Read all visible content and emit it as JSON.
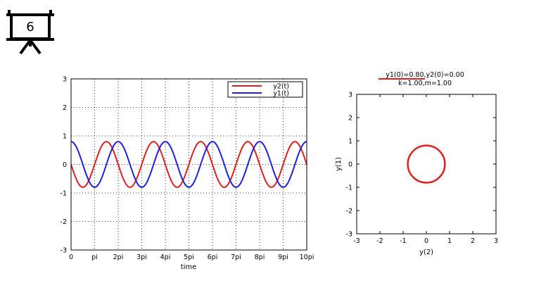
{
  "slide": {
    "number": "6",
    "icon": "projector-screen-icon"
  },
  "chart_data": [
    {
      "type": "line",
      "xlabel": "time",
      "ylabel": "",
      "xlim": [
        0,
        31.4159
      ],
      "ylim": [
        -3,
        3
      ],
      "grid": true,
      "legend_position": "top-right",
      "x_ticks": [
        {
          "value": 0,
          "label": "0"
        },
        {
          "value": 3.14159,
          "label": "pi"
        },
        {
          "value": 6.28319,
          "label": "2pi"
        },
        {
          "value": 9.42478,
          "label": "3pi"
        },
        {
          "value": 12.56637,
          "label": "4pi"
        },
        {
          "value": 15.70796,
          "label": "5pi"
        },
        {
          "value": 18.84956,
          "label": "6pi"
        },
        {
          "value": 21.99115,
          "label": "7pi"
        },
        {
          "value": 25.13274,
          "label": "8pi"
        },
        {
          "value": 28.27433,
          "label": "9pi"
        },
        {
          "value": 31.41593,
          "label": "10pi"
        }
      ],
      "y_ticks": [
        {
          "value": 3,
          "label": "3"
        },
        {
          "value": 2,
          "label": "2"
        },
        {
          "value": 1,
          "label": "1"
        },
        {
          "value": 0,
          "label": "0"
        },
        {
          "value": -1,
          "label": "-1"
        },
        {
          "value": -2,
          "label": "-2"
        },
        {
          "value": -3,
          "label": "-3"
        }
      ],
      "series": [
        {
          "name": "y2(t)",
          "color": "#e02020",
          "formula": "y2(t) = -0.8 * sin(t)",
          "amplitude": 0.8,
          "phase": "negative sine"
        },
        {
          "name": "y1(t)",
          "color": "#2020e0",
          "formula": "y1(t) = 0.8 * cos(t)",
          "amplitude": 0.8,
          "phase": "cosine"
        }
      ]
    },
    {
      "type": "line",
      "title_lines": [
        "y1(0)=0.80,y2(0)=0.00",
        "k=1.00,m=1.00"
      ],
      "xlabel": "y(2)",
      "ylabel": "y(1)",
      "xlim": [
        -3,
        3
      ],
      "ylim": [
        -3,
        3
      ],
      "grid": false,
      "x_ticks": [
        {
          "value": -3,
          "label": "-3"
        },
        {
          "value": -2,
          "label": "-2"
        },
        {
          "value": -1,
          "label": "-1"
        },
        {
          "value": 0,
          "label": "0"
        },
        {
          "value": 1,
          "label": "1"
        },
        {
          "value": 2,
          "label": "2"
        },
        {
          "value": 3,
          "label": "3"
        }
      ],
      "y_ticks": [
        {
          "value": 3,
          "label": "3"
        },
        {
          "value": 2,
          "label": "2"
        },
        {
          "value": 1,
          "label": "1"
        },
        {
          "value": 0,
          "label": "0"
        },
        {
          "value": -1,
          "label": "-1"
        },
        {
          "value": -2,
          "label": "-2"
        },
        {
          "value": -3,
          "label": "-3"
        }
      ],
      "series": [
        {
          "color": "#e02020",
          "shape": "circle",
          "center": [
            0,
            0
          ],
          "radius": 0.8
        }
      ]
    }
  ]
}
